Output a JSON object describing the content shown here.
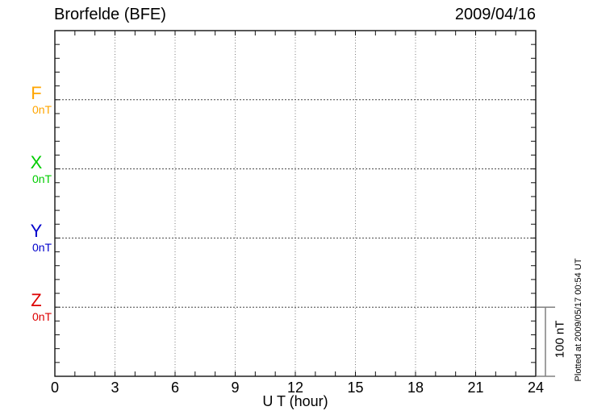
{
  "header": {
    "title": "Brorfelde (BFE)",
    "date": "2009/04/16"
  },
  "xaxis": {
    "label": "U T (hour)",
    "tick_labels": [
      "0",
      "3",
      "6",
      "9",
      "12",
      "15",
      "18",
      "21",
      "24"
    ]
  },
  "channels": [
    {
      "label": "F",
      "baseline_label": "0nT",
      "color": "#FFA500"
    },
    {
      "label": "X",
      "baseline_label": "0nT",
      "color": "#00CC00"
    },
    {
      "label": "Y",
      "baseline_label": "0nT",
      "color": "#0000CC"
    },
    {
      "label": "Z",
      "baseline_label": "0nT",
      "color": "#DD0000"
    }
  ],
  "scale_bar": {
    "label": "100 nT",
    "color": "#808080"
  },
  "side_note": "Plotted at 2009/05/17 00:54 UT",
  "chart_data": {
    "type": "line",
    "title": "Brorfelde (BFE)",
    "date": "2009/04/16",
    "xlabel": "U T (hour)",
    "x_range_hours": [
      0,
      24
    ],
    "x_major_tick_hours": 3,
    "x_minor_tick_hours": 1,
    "x_tick_labels": [
      0,
      3,
      6,
      9,
      12,
      15,
      18,
      21,
      24
    ],
    "y_units": "nT",
    "y_nT_per_division": 100,
    "y_minor_tick_nT": 20,
    "y_total_range_nT": 500,
    "scale_bar_label": "100 nT",
    "grid": "dotted vertical lines every 3 hours; dotted horizontal lines at each channel 0 nT baseline",
    "legend_position": "left margin",
    "series": [
      {
        "name": "F",
        "color": "#FFA500",
        "baseline_value_nT": 0,
        "baseline_label": "0nT",
        "values": []
      },
      {
        "name": "X",
        "color": "#00CC00",
        "baseline_value_nT": 0,
        "baseline_label": "0nT",
        "values": []
      },
      {
        "name": "Y",
        "color": "#0000CC",
        "baseline_value_nT": 0,
        "baseline_label": "0nT",
        "values": []
      },
      {
        "name": "Z",
        "color": "#DD0000",
        "baseline_value_nT": 0,
        "baseline_label": "0nT",
        "values": []
      }
    ],
    "note": "No data traces are drawn; plot shows empty grid with baselines only"
  }
}
